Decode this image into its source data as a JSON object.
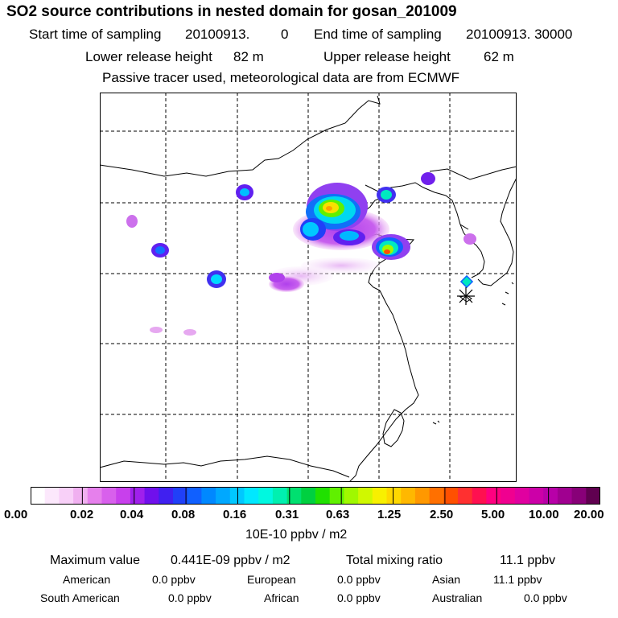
{
  "header": {
    "title": "SO2 source contributions in nested domain for gosan_201009",
    "start_label": "Start time of sampling",
    "start_value": "20100913.",
    "start_hour": "0",
    "end_label": "End time of sampling",
    "end_value": "20100913. 30000",
    "lower_label": "Lower release height",
    "lower_value": "82 m",
    "upper_label": "Upper release height",
    "upper_value": "62 m",
    "note": "Passive tracer used, meteorological data are from ECMWF"
  },
  "colorbar": {
    "ticks": [
      "0.00",
      "0.02",
      "0.04",
      "0.08",
      "0.16",
      "0.31",
      "0.63",
      "1.25",
      "2.50",
      "5.00",
      "10.00",
      "20.00"
    ],
    "unit": "10E-10 ppbv / m2",
    "colors": [
      "#ffffff",
      "#fce8fc",
      "#f8d0f8",
      "#f0b0f0",
      "#e680ec",
      "#d860ec",
      "#c840ec",
      "#a020ec",
      "#7010ec",
      "#4020f0",
      "#2040f8",
      "#1060ff",
      "#0088ff",
      "#00a8ff",
      "#00c8ff",
      "#00e8ff",
      "#00f8e0",
      "#00f0b0",
      "#00e070",
      "#00d040",
      "#20e000",
      "#60f000",
      "#a0f800",
      "#d0f800",
      "#f8f000",
      "#ffd800",
      "#ffb800",
      "#ff9800",
      "#ff7000",
      "#ff5000",
      "#ff3030",
      "#ff1050",
      "#ff0080",
      "#f00090",
      "#e000a0",
      "#cc00a8",
      "#b800a8",
      "#a00090",
      "#880078",
      "#600050"
    ]
  },
  "stats": {
    "max_label": "Maximum value",
    "max_value": "0.441E-09 ppbv / m2",
    "total_label": "Total mixing ratio",
    "total_value": "11.1 ppbv",
    "regions": [
      {
        "name": "American",
        "value": "0.0 ppbv"
      },
      {
        "name": "European",
        "value": "0.0 ppbv"
      },
      {
        "name": "Asian",
        "value": "11.1 ppbv"
      },
      {
        "name": "South American",
        "value": "0.0 ppbv"
      },
      {
        "name": "African",
        "value": "0.0 ppbv"
      },
      {
        "name": "Australian",
        "value": "0.0 ppbv"
      }
    ]
  }
}
